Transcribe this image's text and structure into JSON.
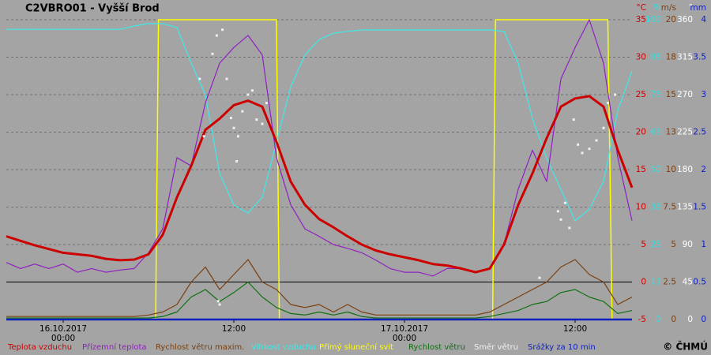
{
  "chart_data": {
    "type": "line",
    "title": "C2VBRO01 - Vyšší Brod",
    "copyright": "© ČHMÚ",
    "xlim": [
      -4,
      40
    ],
    "xticks": [
      {
        "value": 0,
        "label": "00:00",
        "date": "16.10.2017"
      },
      {
        "value": 12,
        "label": "12:00"
      },
      {
        "value": 24,
        "label": "00:00",
        "date": "17.10.2017"
      },
      {
        "value": 36,
        "label": "12:00"
      }
    ],
    "grid": true,
    "zero_line": true,
    "axes": [
      {
        "unit": "°C",
        "color": "#cc0000",
        "lim": [
          -5,
          35
        ],
        "ticks": [
          -5,
          0,
          5,
          10,
          15,
          20,
          25,
          30,
          35
        ]
      },
      {
        "unit": "%",
        "color": "#30e0e0",
        "lim": [
          0,
          100
        ],
        "ticks": [
          0,
          {
            "value": 12.5,
            "label": "13"
          },
          25,
          {
            "value": 37.5,
            "label": "38"
          },
          50,
          {
            "value": 62.5,
            "label": "63"
          },
          75,
          {
            "value": 87.5,
            "label": "88"
          },
          100
        ]
      },
      {
        "unit": "m/s",
        "color": "#7a4010",
        "lim": [
          0,
          20
        ],
        "ticks": [
          0,
          2.5,
          5,
          7.5,
          10,
          {
            "value": 12.5,
            "label": "13"
          },
          15,
          {
            "value": 17.5,
            "label": "18"
          },
          20
        ]
      },
      {
        "unit": "°",
        "color": "#ffffff",
        "lim": [
          0,
          360
        ],
        "ticks": [
          0,
          45,
          90,
          135,
          180,
          225,
          270,
          315,
          360
        ]
      },
      {
        "unit": "mm",
        "color": "#1020c0",
        "lim": [
          0,
          4
        ],
        "ticks": [
          0,
          0.5,
          1,
          1.5,
          2,
          2.5,
          3,
          3.5,
          4
        ]
      }
    ],
    "x": [
      -4,
      -3,
      -2,
      -1,
      0,
      1,
      2,
      3,
      4,
      5,
      6,
      7,
      8,
      9,
      10,
      11,
      12,
      13,
      14,
      15,
      16,
      17,
      18,
      19,
      20,
      21,
      22,
      23,
      24,
      25,
      26,
      27,
      28,
      29,
      30,
      31,
      32,
      33,
      34,
      35,
      36,
      37,
      38,
      39,
      40
    ],
    "series": [
      {
        "name": "Přímý sluneční svit",
        "color": "#ffff00",
        "axis": 1,
        "style": "line",
        "width": 1.5,
        "x": [
          -4,
          6.5,
          6.7,
          15,
          15.2,
          30.2,
          30.4,
          38.3,
          38.6,
          40
        ],
        "values": [
          0,
          0,
          100,
          100,
          0,
          0,
          100,
          100,
          0,
          0
        ]
      },
      {
        "name": "Vlhkost vzduchu",
        "color": "#40e8e8",
        "axis": 1,
        "style": "line",
        "width": 1.2,
        "values": [
          96.8,
          96.8,
          96.8,
          96.8,
          96.8,
          96.8,
          96.8,
          96.8,
          96.8,
          97.9,
          98.7,
          98.7,
          97.4,
          85.5,
          75,
          48.7,
          38.2,
          35.5,
          40.8,
          59.2,
          77.6,
          88.2,
          93.4,
          95.5,
          96.1,
          96.6,
          96.6,
          96.6,
          96.6,
          96.6,
          96.6,
          96.6,
          96.6,
          96.6,
          96.6,
          96.1,
          85.5,
          67.1,
          53.9,
          43.4,
          32.9,
          36.8,
          46.1,
          69.7,
          82.9
        ]
      },
      {
        "name": "Rychlost větru maxim.",
        "color": "#7a4010",
        "axis": 2,
        "style": "line",
        "width": 1.2,
        "values": [
          0.2,
          0.2,
          0.2,
          0.2,
          0.2,
          0.2,
          0.2,
          0.2,
          0.2,
          0.2,
          0.3,
          0.5,
          1,
          2.5,
          3.5,
          2,
          3,
          4,
          2.5,
          2,
          1,
          0.8,
          1,
          0.5,
          1,
          0.5,
          0.3,
          0.3,
          0.3,
          0.3,
          0.3,
          0.3,
          0.3,
          0.3,
          0.5,
          1,
          1.5,
          2,
          2.5,
          3.5,
          4,
          3,
          2.5,
          1,
          1.5
        ]
      },
      {
        "name": "Rychlost větru",
        "color": "#107010",
        "axis": 2,
        "style": "line",
        "width": 1.2,
        "values": [
          0.1,
          0.1,
          0.1,
          0.1,
          0.1,
          0.1,
          0.1,
          0.1,
          0.1,
          0.1,
          0.1,
          0.2,
          0.5,
          1.5,
          2,
          1.2,
          1.8,
          2.5,
          1.5,
          0.8,
          0.4,
          0.3,
          0.5,
          0.3,
          0.5,
          0.2,
          0.1,
          0.1,
          0.1,
          0.1,
          0.1,
          0.1,
          0.1,
          0.1,
          0.2,
          0.4,
          0.6,
          1,
          1.2,
          1.8,
          2,
          1.5,
          1.2,
          0.4,
          0.6
        ]
      },
      {
        "name": "Přízemní teplota",
        "color": "#9020c0",
        "axis": 0,
        "style": "line",
        "width": 1.2,
        "values": [
          2.6,
          1.8,
          2.4,
          1.8,
          2.4,
          1.3,
          1.8,
          1.3,
          1.6,
          1.8,
          3.9,
          7.1,
          16.6,
          15.5,
          23.9,
          29.2,
          31.3,
          32.9,
          30.3,
          16.6,
          10.3,
          7.1,
          6.1,
          5,
          4.5,
          3.9,
          2.9,
          1.8,
          1.3,
          1.3,
          0.8,
          1.8,
          1.8,
          1.3,
          1.8,
          5,
          12.4,
          17.6,
          13.4,
          27.1,
          31.3,
          35,
          29.2,
          16.6,
          8.2
        ]
      },
      {
        "name": "Teplota vzduchu",
        "color": "#cc0000",
        "axis": 0,
        "style": "line",
        "width": 3,
        "values": [
          6.1,
          5.5,
          4.9,
          4.4,
          3.9,
          3.7,
          3.5,
          3.1,
          2.9,
          3,
          3.7,
          6.3,
          11.3,
          15.5,
          20.3,
          21.8,
          23.6,
          24.2,
          23.4,
          18.7,
          13.4,
          10.3,
          8.4,
          7.3,
          6.1,
          5,
          4.2,
          3.7,
          3.3,
          2.9,
          2.4,
          2.2,
          1.8,
          1.3,
          1.8,
          5,
          10.3,
          14.5,
          19.2,
          23.4,
          24.5,
          24.8,
          23.4,
          17.6,
          12.6
        ]
      },
      {
        "name": "Směr větru",
        "color": "#f0f0f0",
        "axis": 3,
        "style": "dots",
        "x": [
          9.6,
          9.9,
          10.5,
          10.8,
          10.9,
          11,
          11.2,
          11.5,
          11.8,
          12,
          12.2,
          12.3,
          12.6,
          13,
          13.3,
          13.6,
          14,
          14.3,
          33.5,
          34.8,
          35,
          35.3,
          35.6,
          35.9,
          36.2,
          36.5,
          37,
          37.5,
          38,
          38.3,
          38.8
        ],
        "values": [
          289,
          220,
          319,
          341,
          22,
          18,
          348,
          289,
          242,
          230,
          190,
          220,
          250,
          270,
          275,
          240,
          235,
          260,
          50,
          130,
          120,
          140,
          110,
          240,
          210,
          200,
          205,
          215,
          230,
          260,
          270
        ]
      },
      {
        "name": "Srážky za 10 min",
        "color": "#1020c0",
        "axis": 4,
        "style": "line",
        "width": 2.5,
        "x": [
          -4,
          40
        ],
        "values": [
          0,
          0
        ]
      }
    ]
  }
}
